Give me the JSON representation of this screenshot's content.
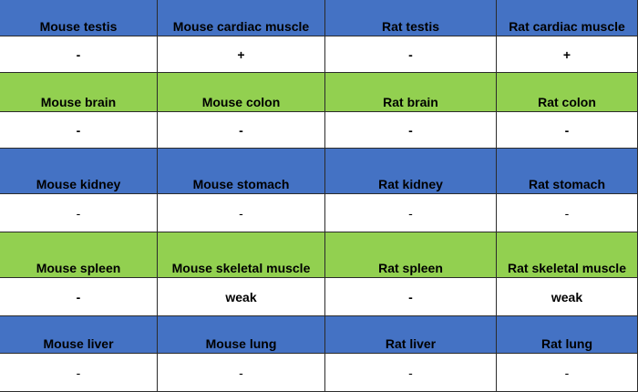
{
  "table": {
    "rows": [
      [
        "Mouse testis",
        "Mouse cardiac muscle",
        "Rat testis",
        "Rat cardiac muscle"
      ],
      [
        "-",
        "+",
        "-",
        "+"
      ],
      [
        "Mouse brain",
        "Mouse colon",
        "Rat brain",
        "Rat colon"
      ],
      [
        "-",
        "-",
        "-",
        "-"
      ],
      [
        "Mouse kidney",
        "Mouse stomach",
        "Rat kidney",
        "Rat stomach"
      ],
      [
        "-",
        "-",
        "-",
        "-"
      ],
      [
        "Mouse spleen",
        "Mouse skeletal muscle",
        "Rat spleen",
        "Rat skeletal muscle"
      ],
      [
        "-",
        "weak",
        "-",
        "weak"
      ],
      [
        "Mouse liver",
        "Mouse lung",
        "Rat liver",
        "Rat lung"
      ],
      [
        "-",
        "-",
        "-",
        "-"
      ]
    ]
  }
}
